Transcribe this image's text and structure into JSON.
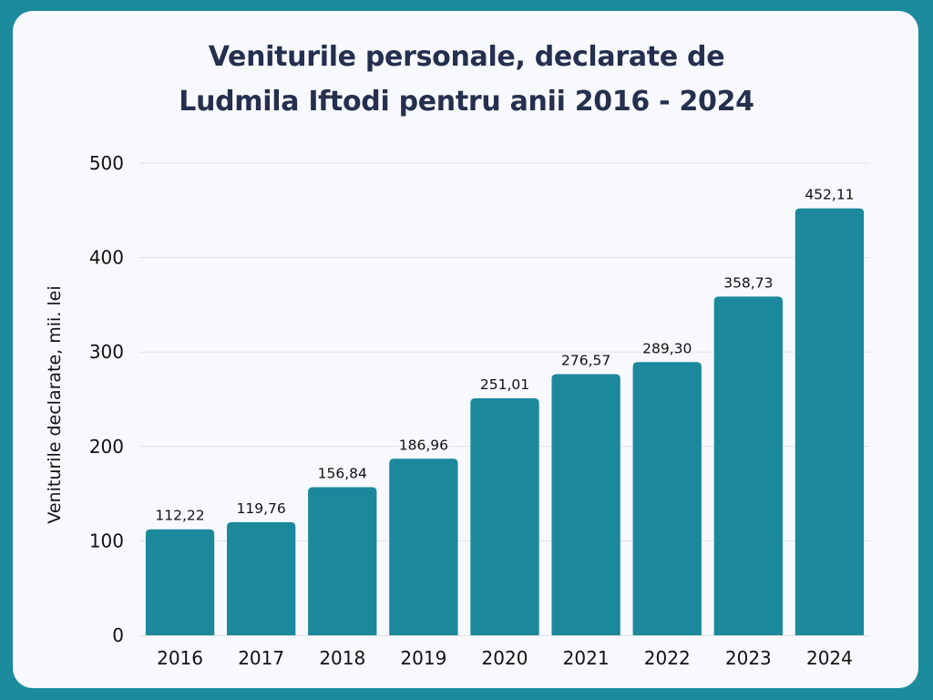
{
  "chart_data": {
    "type": "bar",
    "title_lines": [
      "Veniturile personale, declarate de",
      "Ludmila Iftodi pentru anii 2016 - 2024"
    ],
    "xlabel": "",
    "ylabel": "Veniturile declarate, mii. lei",
    "categories": [
      "2016",
      "2017",
      "2018",
      "2019",
      "2020",
      "2021",
      "2022",
      "2023",
      "2024"
    ],
    "values": [
      112.22,
      119.76,
      156.84,
      186.96,
      251.01,
      276.57,
      289.3,
      358.73,
      452.11
    ],
    "value_labels": [
      "112,22",
      "119,76",
      "156,84",
      "186,96",
      "251,01",
      "276,57",
      "289,30",
      "358,73",
      "452,11"
    ],
    "ylim": [
      0,
      500
    ],
    "yticks": [
      0,
      100,
      200,
      300,
      400,
      500
    ],
    "ytick_labels": [
      "0",
      "100",
      "200",
      "300",
      "400",
      "500"
    ],
    "grid": true,
    "legend": "none",
    "bar_color": "#1b889c",
    "frame_color": "#1b8a9c"
  }
}
